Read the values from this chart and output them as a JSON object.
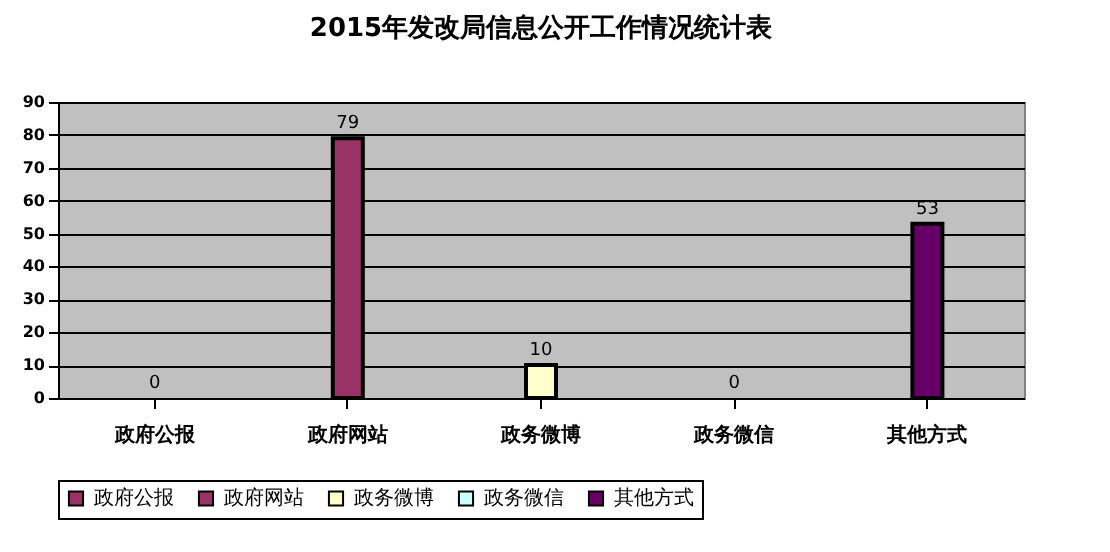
{
  "chart_data": {
    "type": "bar",
    "title": "2015年发改局信息公开工作情况统计表",
    "categories": [
      "政府公报",
      "政府网站",
      "政务微博",
      "政务微信",
      "其他方式"
    ],
    "series": [
      {
        "name": "政府公报",
        "color": "#993366",
        "values": [
          0,
          null,
          null,
          null,
          null
        ]
      },
      {
        "name": "政府网站",
        "color": "#993366",
        "values": [
          null,
          79,
          null,
          null,
          null
        ]
      },
      {
        "name": "政务微博",
        "color": "#ffffcc",
        "values": [
          null,
          null,
          10,
          null,
          null
        ]
      },
      {
        "name": "政务微信",
        "color": "#ccffff",
        "values": [
          null,
          null,
          null,
          0,
          null
        ]
      },
      {
        "name": "其他方式",
        "color": "#660066",
        "values": [
          null,
          null,
          null,
          null,
          53
        ]
      }
    ],
    "ylim": [
      0,
      90
    ],
    "yticks": [
      0,
      10,
      20,
      30,
      40,
      50,
      60,
      70,
      80,
      90
    ],
    "grid": "y",
    "legend": "bottom",
    "data_labels": true
  }
}
